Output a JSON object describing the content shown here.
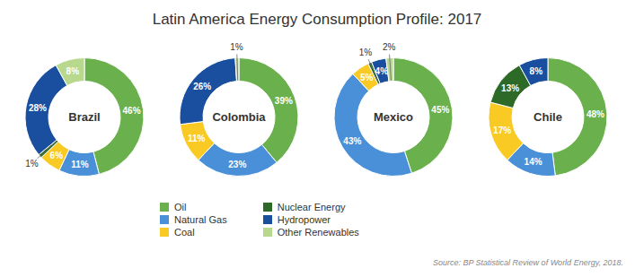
{
  "title": "Latin America Energy Consumption Profile: 2017",
  "annotations": [
    "Source: BP Statistical Review of World Energy, 2018."
  ],
  "legend": "bottom",
  "chart_data": [
    {
      "type": "pie",
      "title": "Brazil",
      "categories": [
        "Oil",
        "Natural Gas",
        "Coal",
        "Nuclear Energy",
        "Hydropower",
        "Other Renewables"
      ],
      "values": [
        46,
        11,
        6,
        1,
        28,
        8
      ],
      "value_labels": [
        "46%",
        "11%",
        "6%",
        "1%",
        "28%",
        "8%"
      ],
      "colors": [
        "#6ab04c",
        "#4a90d9",
        "#f9ca24",
        "#2d6a27",
        "#1a4fa0",
        "#b8d98d"
      ],
      "data_labels": true
    },
    {
      "type": "pie",
      "title": "Colombia",
      "categories": [
        "Oil",
        "Natural Gas",
        "Coal",
        "Hydropower",
        "Other Renewables"
      ],
      "values": [
        39,
        23,
        11,
        26,
        1
      ],
      "value_labels": [
        "39%",
        "23%",
        "11%",
        "26%",
        "1%"
      ],
      "colors": [
        "#6ab04c",
        "#4a90d9",
        "#f9ca24",
        "#1a4fa0",
        "#b8d98d"
      ],
      "data_labels": true
    },
    {
      "type": "pie",
      "title": "Mexico",
      "categories": [
        "Oil",
        "Natural Gas",
        "Coal",
        "Nuclear Energy",
        "Hydropower",
        "Other Renewables"
      ],
      "values": [
        45,
        43,
        5,
        1,
        4,
        2
      ],
      "value_labels": [
        "45%",
        "43%",
        "5%",
        "1%",
        "4%",
        "2%"
      ],
      "colors": [
        "#6ab04c",
        "#4a90d9",
        "#f9ca24",
        "#2d6a27",
        "#1a4fa0",
        "#b8d98d"
      ],
      "data_labels": true
    },
    {
      "type": "pie",
      "title": "Chile",
      "categories": [
        "Oil",
        "Natural Gas",
        "Coal",
        "Nuclear Energy",
        "Hydropower"
      ],
      "values": [
        48,
        14,
        17,
        13,
        8
      ],
      "value_labels": [
        "48%",
        "14%",
        "17%",
        "13%",
        "8%"
      ],
      "colors": [
        "#6ab04c",
        "#4a90d9",
        "#f9ca24",
        "#2d6a27",
        "#1a4fa0"
      ],
      "data_labels": true
    }
  ]
}
